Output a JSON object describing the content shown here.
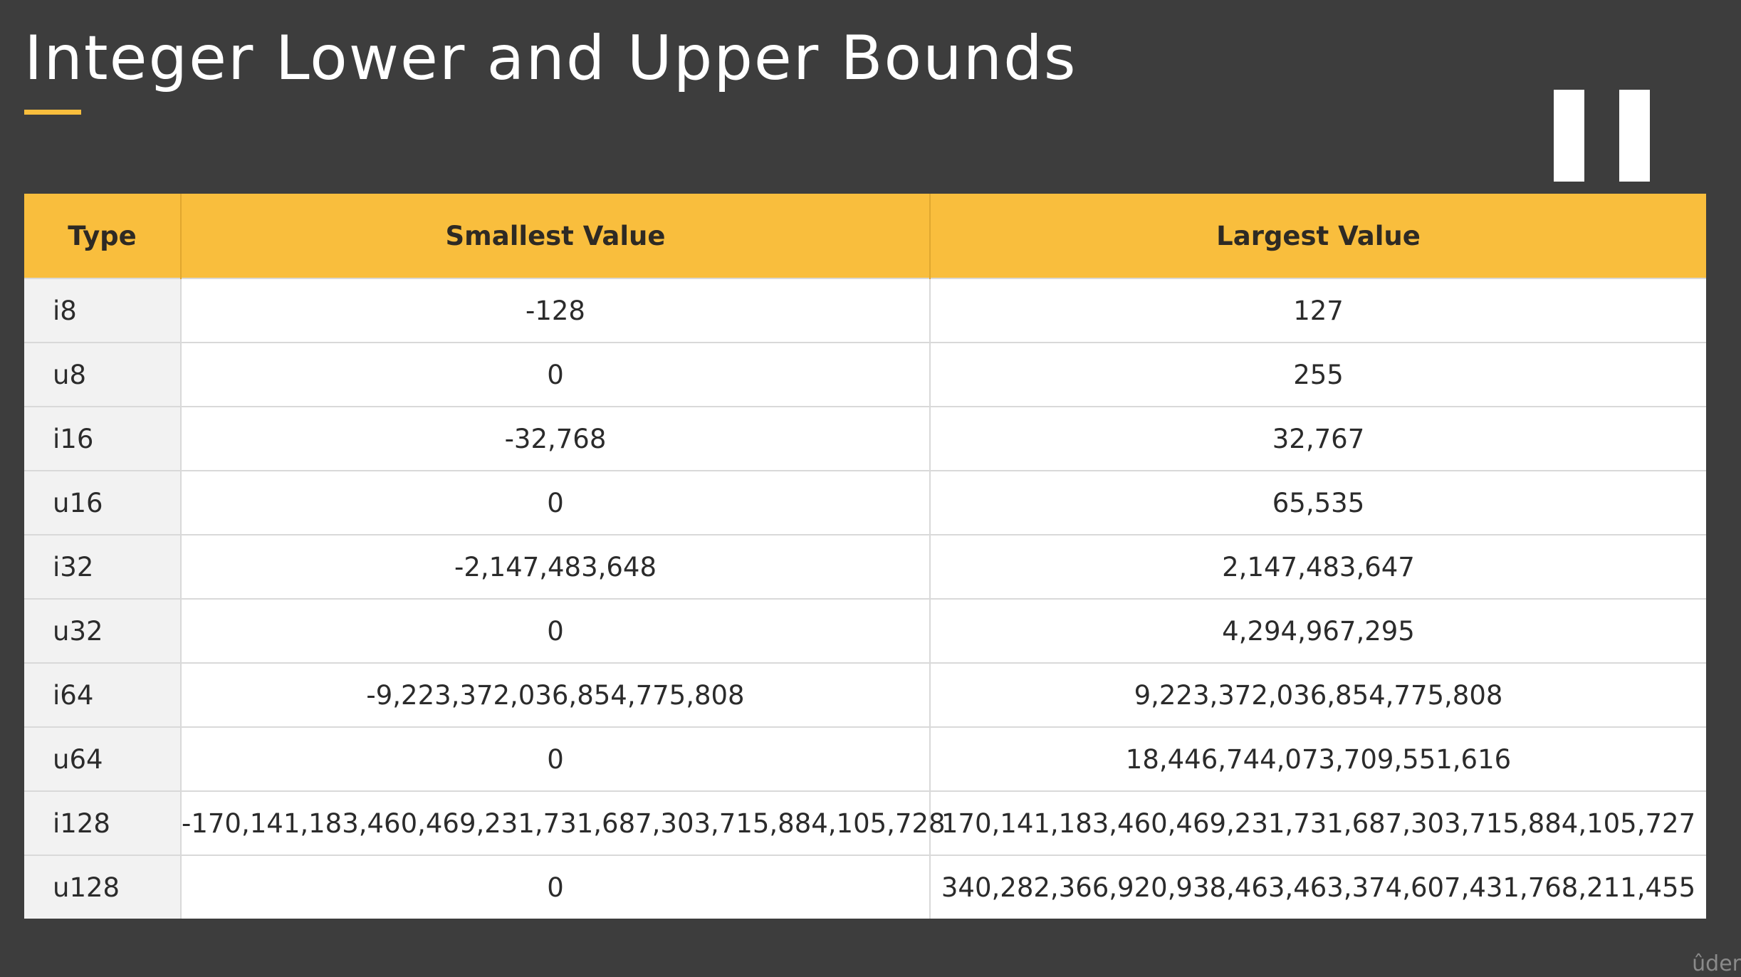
{
  "title": "Integer Lower and Upper Bounds",
  "accent_color": "#f9be3d",
  "background_color": "#3d3d3d",
  "pause_button": {
    "icon": "pause-icon"
  },
  "table": {
    "headers": [
      "Type",
      "Smallest Value",
      "Largest Value"
    ],
    "rows": [
      [
        "i8",
        "-128",
        "127"
      ],
      [
        "u8",
        "0",
        "255"
      ],
      [
        "i16",
        "-32,768",
        "32,767"
      ],
      [
        "u16",
        "0",
        "65,535"
      ],
      [
        "i32",
        "-2,147,483,648",
        "2,147,483,647"
      ],
      [
        "u32",
        "0",
        "4,294,967,295"
      ],
      [
        "i64",
        "-9,223,372,036,854,775,808",
        "9,223,372,036,854,775,808"
      ],
      [
        "u64",
        "0",
        "18,446,744,073,709,551,616"
      ],
      [
        "i128",
        "-170,141,183,460,469,231,731,687,303,715,884,105,728",
        "170,141,183,460,469,231,731,687,303,715,884,105,727"
      ],
      [
        "u128",
        "0",
        "340,282,366,920,938,463,463,374,607,431,768,211,455"
      ]
    ]
  },
  "watermark": "ûder"
}
